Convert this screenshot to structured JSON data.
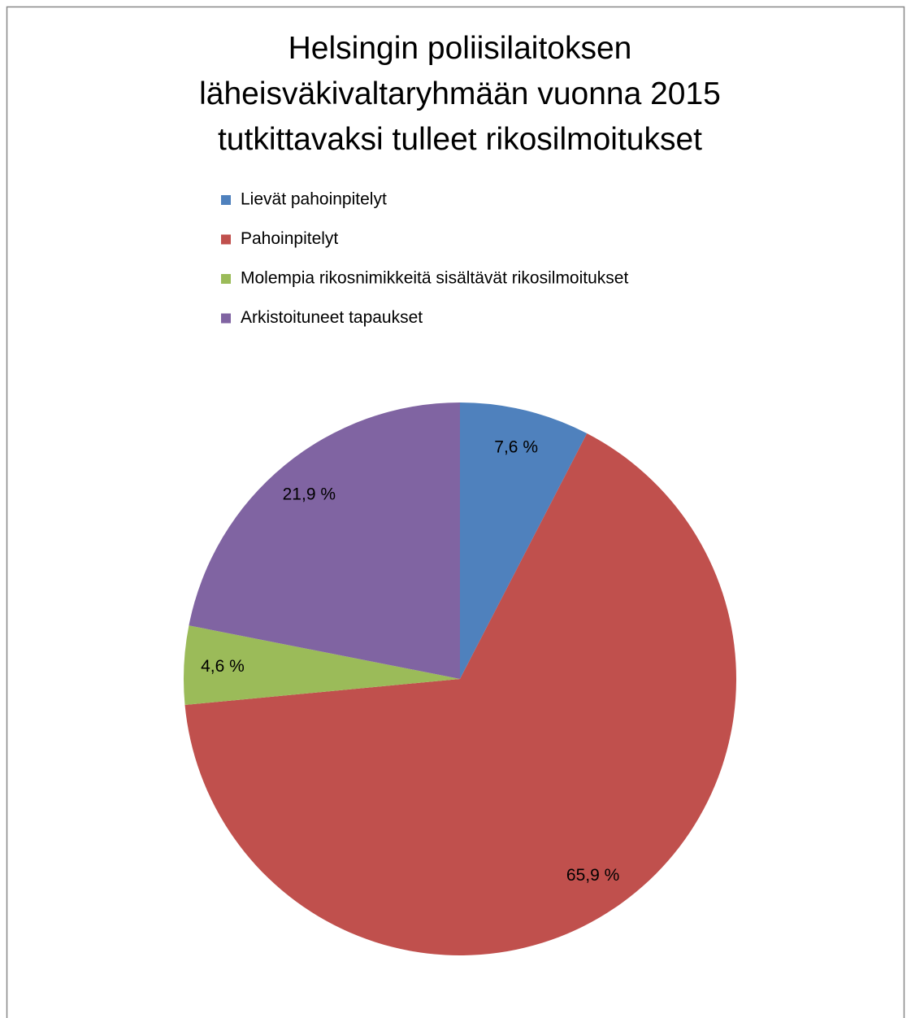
{
  "chart_data": {
    "type": "pie",
    "title": "Helsingin poliisilaitoksen läheisväkivaltaryhmään vuonna 2015 tutkittavaksi tulleet rikosilmoitukset",
    "categories": [
      "Lievät pahoinpitelyt",
      "Pahoinpitelyt",
      "Molempia rikosnimikkeitä sisältävät rikosilmoitukset",
      "Arkistoituneet tapaukset"
    ],
    "values": [
      7.6,
      65.9,
      4.6,
      21.9
    ],
    "value_labels": [
      "7,6 %",
      "65,9 %",
      "4,6 %",
      "21,9 %"
    ],
    "colors": [
      "#4f81bd",
      "#c0504d",
      "#9bbb59",
      "#8064a2"
    ],
    "legend": "top"
  }
}
